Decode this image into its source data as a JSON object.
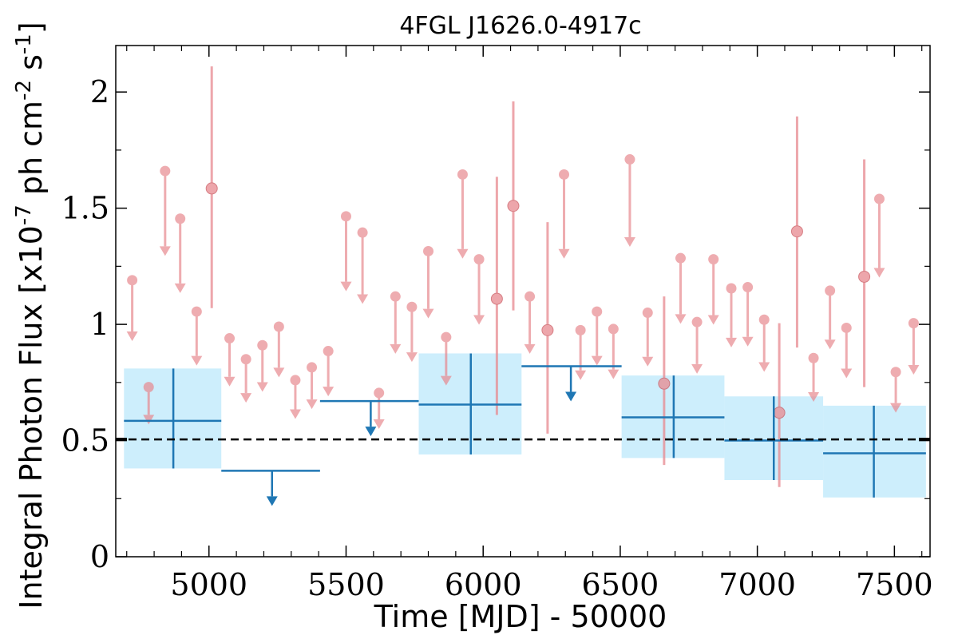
{
  "chart_data": {
    "type": "scatter",
    "title": "4FGL J1626.0-4917c",
    "xlabel": "Time [MJD] - 50000",
    "ylabel": "Integral Photon Flux [x10",
    "ylabel_exp": "-7",
    "ylabel_mid": " ph cm",
    "ylabel_exp2": "-2",
    "ylabel_mid2": " s",
    "ylabel_exp3": "-1",
    "ylabel_end": "]",
    "xlim": [
      4660,
      7630
    ],
    "ylim": [
      0,
      2.2
    ],
    "x_ticks": [
      5000,
      5500,
      6000,
      6500,
      7000,
      7500
    ],
    "x_tick_labels": [
      "5000",
      "5500",
      "6000",
      "6500",
      "7000",
      "7500"
    ],
    "y_ticks": [
      0,
      0.5,
      1,
      1.5,
      2
    ],
    "y_tick_labels": [
      "0",
      "0.5",
      "1",
      "1.5",
      "2"
    ],
    "reference_line": {
      "y": 0.505,
      "style": "dashed",
      "color": "#000000"
    },
    "colors": {
      "short_bins": "#e8898f",
      "long_bins": "#1f77b4",
      "error_band": "#cdeefc"
    },
    "series": [
      {
        "kind": "short_bin_detections",
        "points": [
          {
            "x": 5010,
            "y": 1.585,
            "lo": 1.07,
            "hi": 2.11
          },
          {
            "x": 6050,
            "y": 1.11,
            "lo": 0.61,
            "hi": 1.635
          },
          {
            "x": 6110,
            "y": 1.51,
            "lo": 1.06,
            "hi": 1.96
          },
          {
            "x": 6235,
            "y": 0.975,
            "lo": 0.53,
            "hi": 1.44
          },
          {
            "x": 6660,
            "y": 0.745,
            "lo": 0.395,
            "hi": 1.12
          },
          {
            "x": 7080,
            "y": 0.62,
            "lo": 0.3,
            "hi": 1.005
          },
          {
            "x": 7145,
            "y": 1.4,
            "lo": 0.9,
            "hi": 1.895
          },
          {
            "x": 7390,
            "y": 1.205,
            "lo": 0.73,
            "hi": 1.71
          }
        ]
      },
      {
        "kind": "short_bin_upper_limits",
        "points": [
          {
            "x": 4720,
            "y": 1.19
          },
          {
            "x": 4780,
            "y": 0.73
          },
          {
            "x": 4840,
            "y": 1.66
          },
          {
            "x": 4895,
            "y": 1.455
          },
          {
            "x": 4955,
            "y": 1.055
          },
          {
            "x": 5075,
            "y": 0.94
          },
          {
            "x": 5135,
            "y": 0.85
          },
          {
            "x": 5195,
            "y": 0.91
          },
          {
            "x": 5255,
            "y": 0.99
          },
          {
            "x": 5315,
            "y": 0.76
          },
          {
            "x": 5375,
            "y": 0.815
          },
          {
            "x": 5435,
            "y": 0.885
          },
          {
            "x": 5500,
            "y": 1.465
          },
          {
            "x": 5560,
            "y": 1.395
          },
          {
            "x": 5620,
            "y": 0.705
          },
          {
            "x": 5680,
            "y": 1.12
          },
          {
            "x": 5740,
            "y": 1.075
          },
          {
            "x": 5800,
            "y": 1.315
          },
          {
            "x": 5865,
            "y": 0.945
          },
          {
            "x": 5925,
            "y": 1.645
          },
          {
            "x": 5985,
            "y": 1.28
          },
          {
            "x": 6170,
            "y": 1.12
          },
          {
            "x": 6295,
            "y": 1.645
          },
          {
            "x": 6355,
            "y": 0.975
          },
          {
            "x": 6415,
            "y": 1.055
          },
          {
            "x": 6475,
            "y": 0.98
          },
          {
            "x": 6535,
            "y": 1.71
          },
          {
            "x": 6600,
            "y": 1.05
          },
          {
            "x": 6720,
            "y": 1.285
          },
          {
            "x": 6780,
            "y": 1.01
          },
          {
            "x": 6840,
            "y": 1.28
          },
          {
            "x": 6905,
            "y": 1.155
          },
          {
            "x": 6965,
            "y": 1.16
          },
          {
            "x": 7025,
            "y": 1.02
          },
          {
            "x": 7205,
            "y": 0.855
          },
          {
            "x": 7265,
            "y": 1.145
          },
          {
            "x": 7325,
            "y": 0.985
          },
          {
            "x": 7445,
            "y": 1.54
          },
          {
            "x": 7505,
            "y": 0.795
          },
          {
            "x": 7570,
            "y": 1.005
          }
        ]
      },
      {
        "kind": "long_bin_detections",
        "points": [
          {
            "x0": 4690,
            "x1": 5045,
            "xc": 4870,
            "y": 0.585,
            "lo": 0.38,
            "hi": 0.81
          },
          {
            "x0": 5765,
            "x1": 6140,
            "xc": 5955,
            "y": 0.655,
            "lo": 0.44,
            "hi": 0.875
          },
          {
            "x0": 6505,
            "x1": 6880,
            "xc": 6695,
            "y": 0.6,
            "lo": 0.425,
            "hi": 0.78
          },
          {
            "x0": 6880,
            "x1": 7240,
            "xc": 7060,
            "y": 0.5,
            "lo": 0.33,
            "hi": 0.69
          },
          {
            "x0": 7240,
            "x1": 7615,
            "xc": 7425,
            "y": 0.445,
            "lo": 0.255,
            "hi": 0.65
          }
        ]
      },
      {
        "kind": "long_bin_upper_limits",
        "points": [
          {
            "x0": 5045,
            "x1": 5405,
            "xc": 5230,
            "y": 0.37
          },
          {
            "x0": 5405,
            "x1": 5765,
            "xc": 5590,
            "y": 0.67
          },
          {
            "x0": 6140,
            "x1": 6505,
            "xc": 6320,
            "y": 0.82
          }
        ]
      }
    ]
  }
}
